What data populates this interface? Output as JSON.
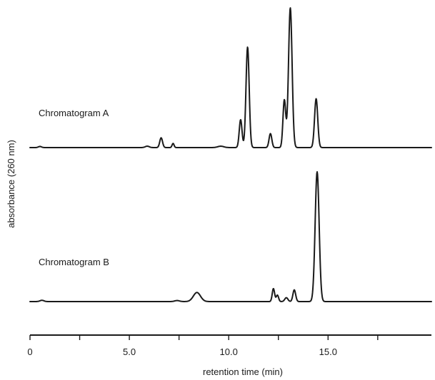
{
  "chart_data": {
    "type": "line",
    "title": "",
    "xlabel": "retention time (min)",
    "ylabel": "absorbance (260 nm)",
    "xlim": [
      0,
      20
    ],
    "x_ticks": [
      0,
      2.5,
      5,
      7.5,
      10,
      12.5,
      15,
      17.5
    ],
    "x_tick_labels": [
      {
        "value": 0,
        "label": "0"
      },
      {
        "value": 5,
        "label": "5.0"
      },
      {
        "value": 10,
        "label": "10.0"
      },
      {
        "value": 15,
        "label": "15.0"
      }
    ],
    "grid": false,
    "y_scale": "relative",
    "series": [
      {
        "name": "Chromatogram A",
        "baseline": 0,
        "peaks": [
          {
            "rt": 0.5,
            "height": 0.008,
            "width": 0.08
          },
          {
            "rt": 5.9,
            "height": 0.01,
            "width": 0.1
          },
          {
            "rt": 6.6,
            "height": 0.07,
            "width": 0.07
          },
          {
            "rt": 7.2,
            "height": 0.03,
            "width": 0.05
          },
          {
            "rt": 9.6,
            "height": 0.01,
            "width": 0.15
          },
          {
            "rt": 10.6,
            "height": 0.2,
            "width": 0.07
          },
          {
            "rt": 10.95,
            "height": 0.72,
            "width": 0.08
          },
          {
            "rt": 12.1,
            "height": 0.1,
            "width": 0.07
          },
          {
            "rt": 12.8,
            "height": 0.34,
            "width": 0.07
          },
          {
            "rt": 13.1,
            "height": 1.0,
            "width": 0.09
          },
          {
            "rt": 14.4,
            "height": 0.35,
            "width": 0.08
          }
        ]
      },
      {
        "name": "Chromatogram B",
        "baseline": 0,
        "peaks": [
          {
            "rt": 0.6,
            "height": 0.01,
            "width": 0.1
          },
          {
            "rt": 7.4,
            "height": 0.008,
            "width": 0.12
          },
          {
            "rt": 8.4,
            "height": 0.07,
            "width": 0.18
          },
          {
            "rt": 12.25,
            "height": 0.1,
            "width": 0.06
          },
          {
            "rt": 12.45,
            "height": 0.05,
            "width": 0.06
          },
          {
            "rt": 12.9,
            "height": 0.03,
            "width": 0.08
          },
          {
            "rt": 13.3,
            "height": 0.09,
            "width": 0.07
          },
          {
            "rt": 14.45,
            "height": 1.0,
            "width": 0.1
          }
        ]
      }
    ]
  }
}
